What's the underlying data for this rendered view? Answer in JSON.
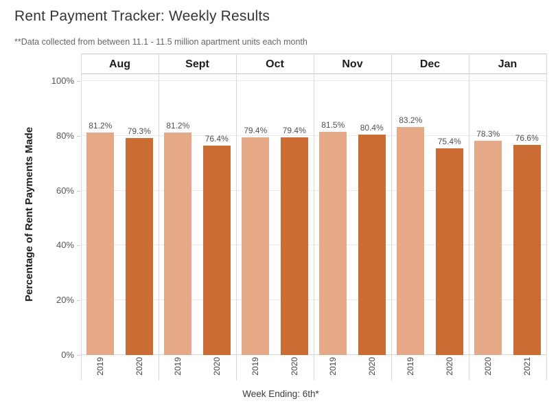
{
  "header": {
    "title": "Rent Payment Tracker: Weekly Results",
    "subtitle": "**Data collected from between 11.1 - 11.5 million apartment units each month"
  },
  "chart_data": {
    "type": "bar",
    "title": "Rent Payment Tracker: Weekly Results",
    "subtitle": "**Data collected from between 11.1 - 11.5 million apartment units each month",
    "ylabel": "Percentage of Rent Payments Made",
    "xlabel": "Week Ending: 6th*",
    "ylim": [
      0,
      100
    ],
    "y_ticks": [
      0,
      20,
      40,
      60,
      80,
      100
    ],
    "y_tick_labels": [
      "0%",
      "20%",
      "40%",
      "60%",
      "80%",
      "100%"
    ],
    "grid": true,
    "legend_position": "none",
    "categories": [
      "Aug",
      "Sept",
      "Oct",
      "Nov",
      "Dec",
      "Jan"
    ],
    "panels": [
      {
        "month": "Aug",
        "bars": [
          {
            "year": "2019",
            "value": 81.2,
            "label": "81.2%",
            "series": "prior_year"
          },
          {
            "year": "2020",
            "value": 79.3,
            "label": "79.3%",
            "series": "latest_year"
          }
        ]
      },
      {
        "month": "Sept",
        "bars": [
          {
            "year": "2019",
            "value": 81.2,
            "label": "81.2%",
            "series": "prior_year"
          },
          {
            "year": "2020",
            "value": 76.4,
            "label": "76.4%",
            "series": "latest_year"
          }
        ]
      },
      {
        "month": "Oct",
        "bars": [
          {
            "year": "2019",
            "value": 79.4,
            "label": "79.4%",
            "series": "prior_year"
          },
          {
            "year": "2020",
            "value": 79.4,
            "label": "79.4%",
            "series": "latest_year"
          }
        ]
      },
      {
        "month": "Nov",
        "bars": [
          {
            "year": "2019",
            "value": 81.5,
            "label": "81.5%",
            "series": "prior_year"
          },
          {
            "year": "2020",
            "value": 80.4,
            "label": "80.4%",
            "series": "latest_year"
          }
        ]
      },
      {
        "month": "Dec",
        "bars": [
          {
            "year": "2019",
            "value": 83.2,
            "label": "83.2%",
            "series": "prior_year"
          },
          {
            "year": "2020",
            "value": 75.4,
            "label": "75.4%",
            "series": "latest_year"
          }
        ]
      },
      {
        "month": "Jan",
        "bars": [
          {
            "year": "2020",
            "value": 78.3,
            "label": "78.3%",
            "series": "prior_year"
          },
          {
            "year": "2021",
            "value": 76.6,
            "label": "76.6%",
            "series": "latest_year"
          }
        ]
      }
    ],
    "colors": {
      "prior_year": "#e5a987",
      "latest_year": "#cb6c35"
    }
  }
}
